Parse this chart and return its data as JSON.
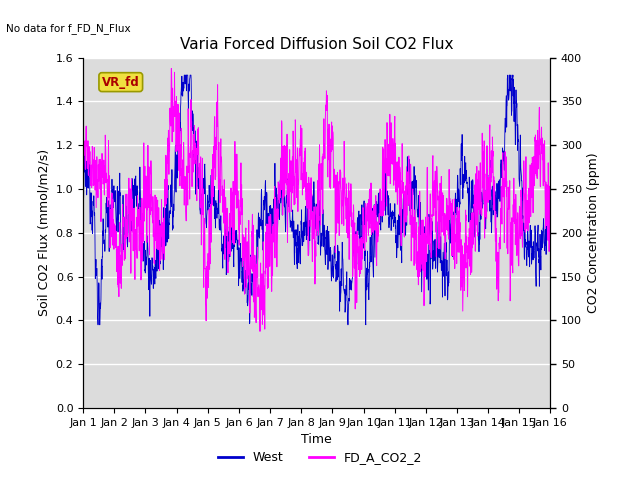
{
  "title": "Varia Forced Diffusion Soil CO2 Flux",
  "no_data_text": "No data for f_FD_N_Flux",
  "xlabel": "Time",
  "ylabel_left": "Soil CO2 Flux (mmol/m2/s)",
  "ylabel_right": "CO2 Concentration (ppm)",
  "ylim_left": [
    0.0,
    1.6
  ],
  "ylim_right": [
    0,
    400
  ],
  "yticks_left": [
    0.0,
    0.2,
    0.4,
    0.6,
    0.8,
    1.0,
    1.2,
    1.4,
    1.6
  ],
  "yticks_right": [
    0,
    50,
    100,
    150,
    200,
    250,
    300,
    350,
    400
  ],
  "xlim": [
    0,
    15
  ],
  "xtick_labels": [
    "Jan 1",
    "Jan 2",
    "Jan 3",
    "Jan 4",
    "Jan 5",
    "Jan 6",
    "Jan 7",
    "Jan 8",
    "Jan 9",
    "Jan 10",
    "Jan 11",
    "Jan 12",
    "Jan 13",
    "Jan 14",
    "Jan 15",
    "Jan 16"
  ],
  "legend_label_west": "West",
  "legend_label_co2": "FD_A_CO2_2",
  "color_west": "#0000cc",
  "color_co2": "#ff00ff",
  "vr_fd_label": "VR_fd",
  "bg_color": "#dcdcdc",
  "fig_bg_color": "#ffffff",
  "title_fontsize": 11,
  "label_fontsize": 9,
  "tick_fontsize": 8
}
